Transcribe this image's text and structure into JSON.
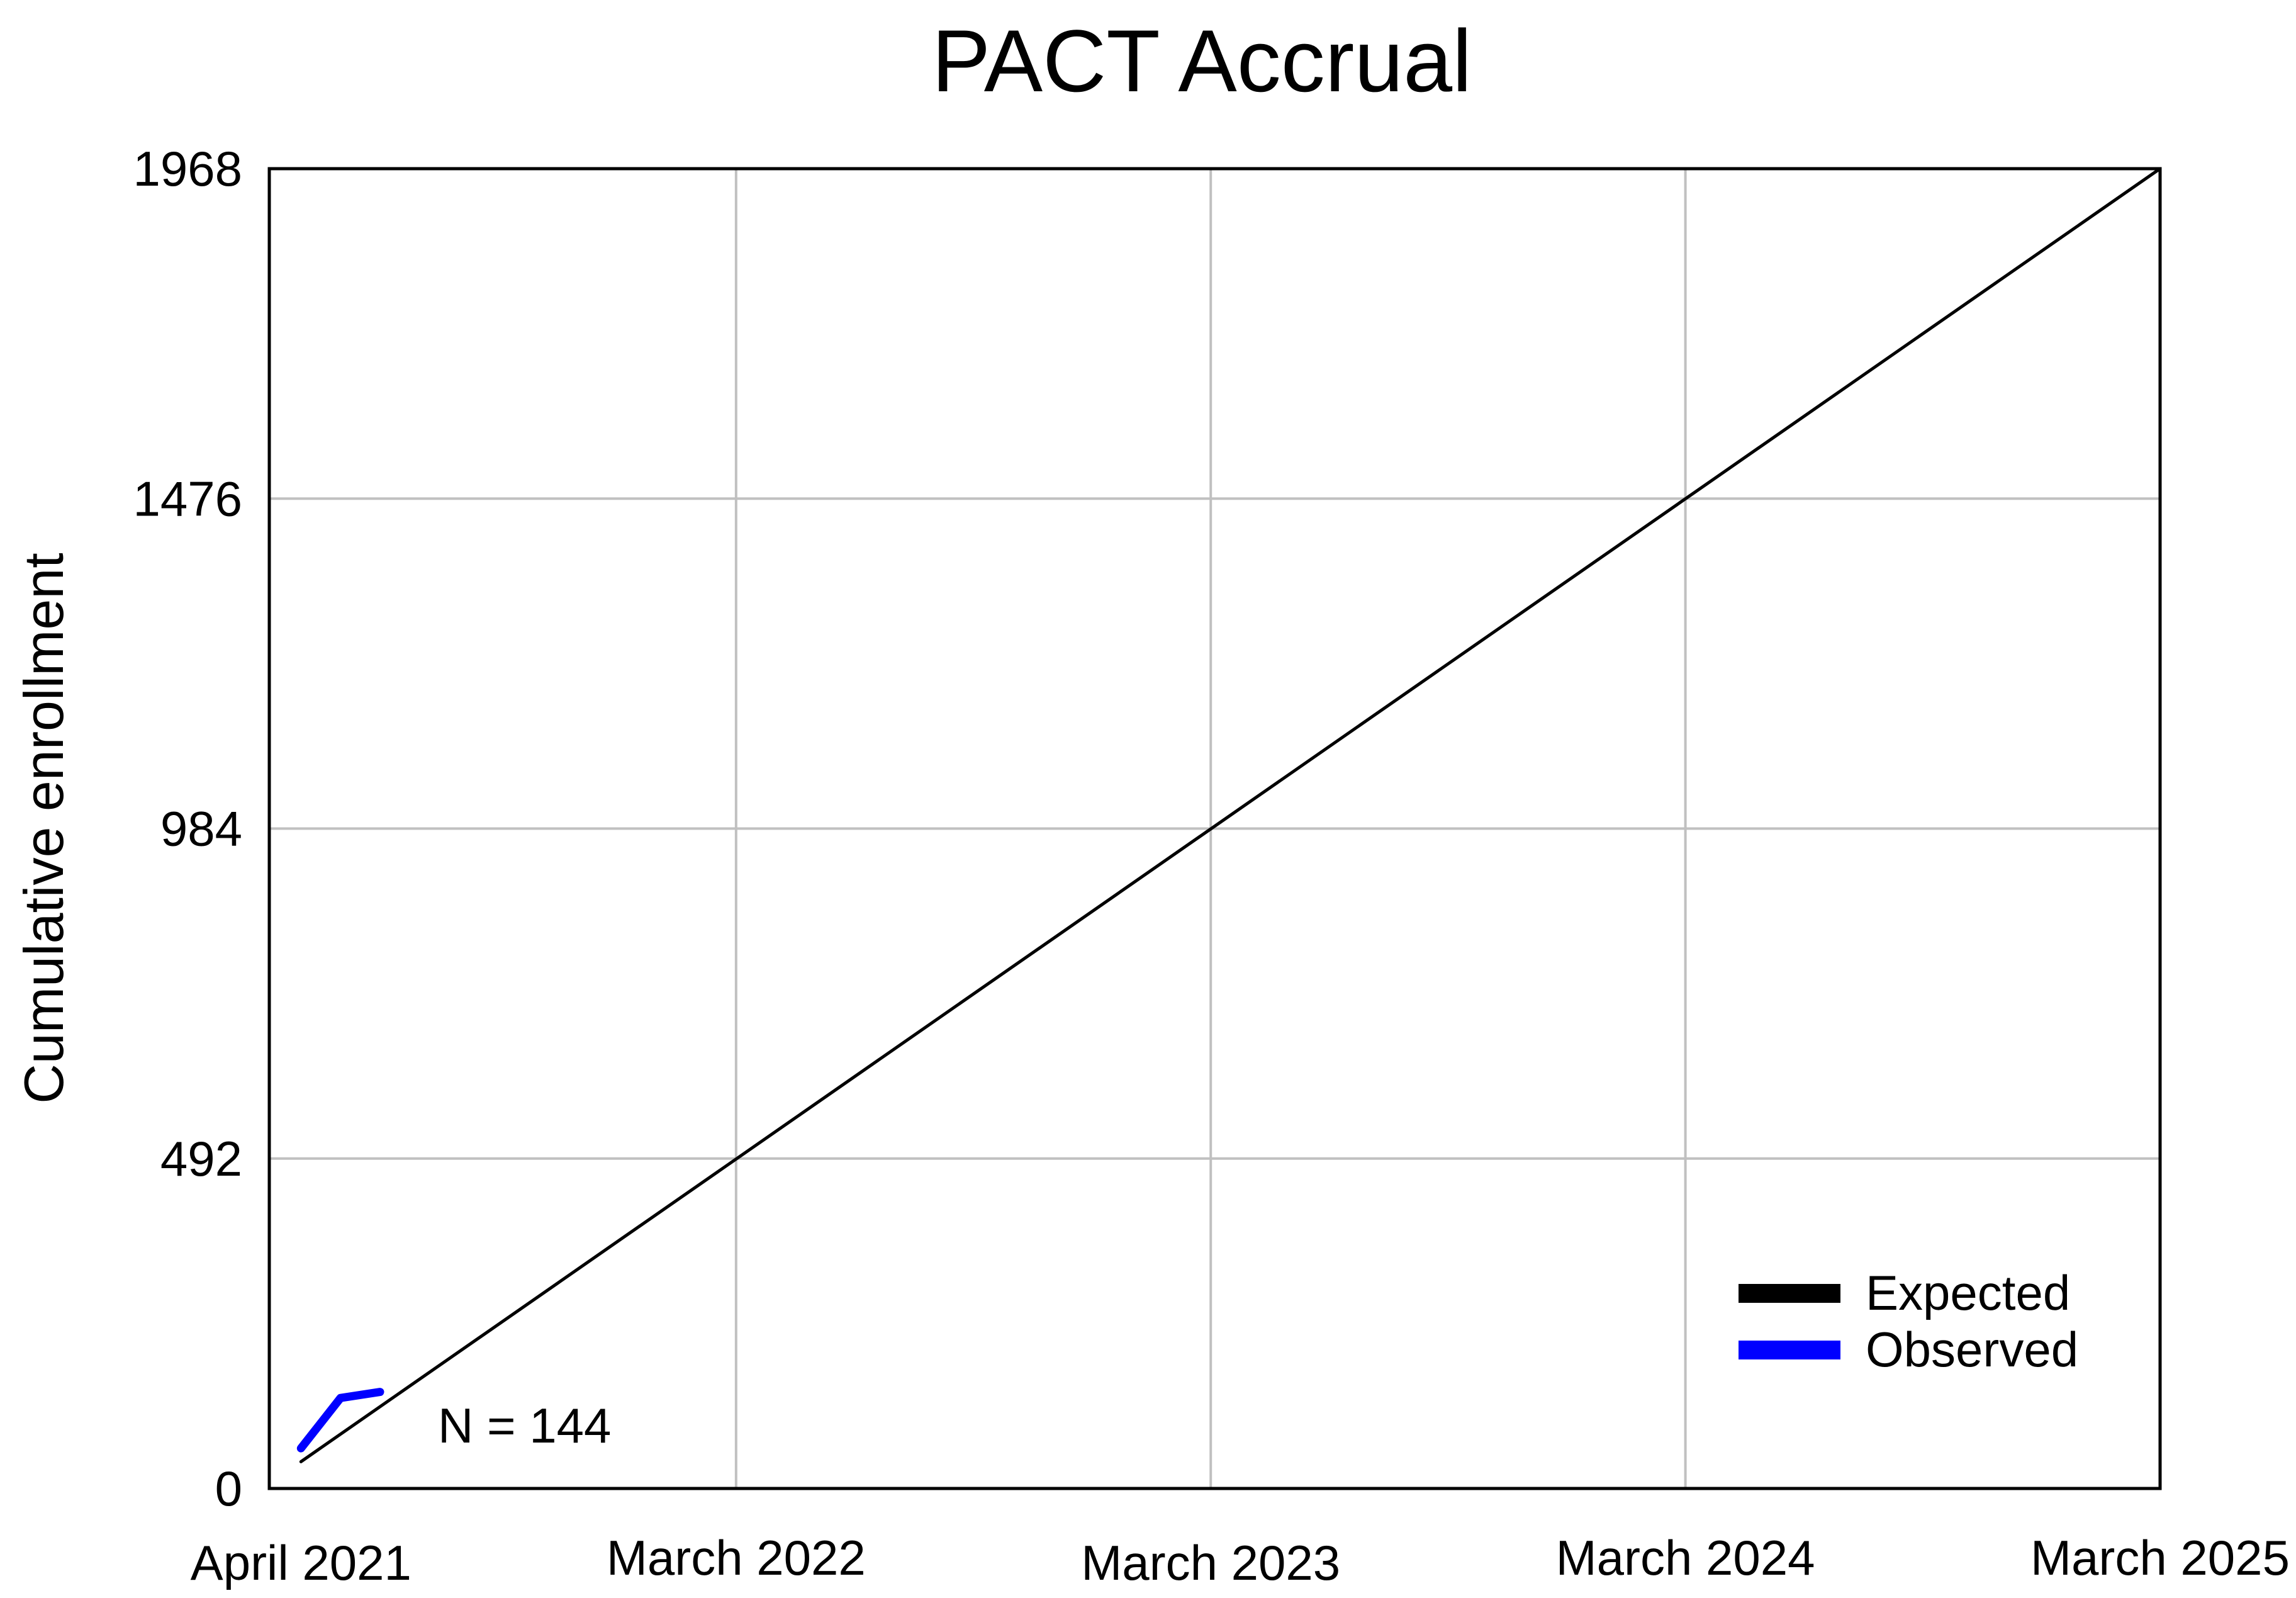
{
  "chart_data": {
    "type": "line",
    "title": "PACT Accrual",
    "xlabel": "",
    "ylabel": "Cumulative enrollment",
    "x_ticks": [
      "April 2021",
      "March 2022",
      "March 2023",
      "March 2024",
      "March 2025"
    ],
    "y_ticks": [
      0,
      492,
      984,
      1476,
      1968
    ],
    "ylim": [
      0,
      1968
    ],
    "grid": true,
    "legend_position": "bottom-right",
    "annotation": "N = 144",
    "series": [
      {
        "name": "Expected",
        "color": "#000000",
        "points": [
          {
            "x": "2021-04",
            "y": 40
          },
          {
            "x": "2025-03",
            "y": 1968
          }
        ]
      },
      {
        "name": "Observed",
        "color": "#0000ff",
        "points": [
          {
            "x": "2021-04",
            "y": 60
          },
          {
            "x": "2021-05",
            "y": 135
          },
          {
            "x": "2021-06",
            "y": 144
          }
        ]
      }
    ]
  }
}
